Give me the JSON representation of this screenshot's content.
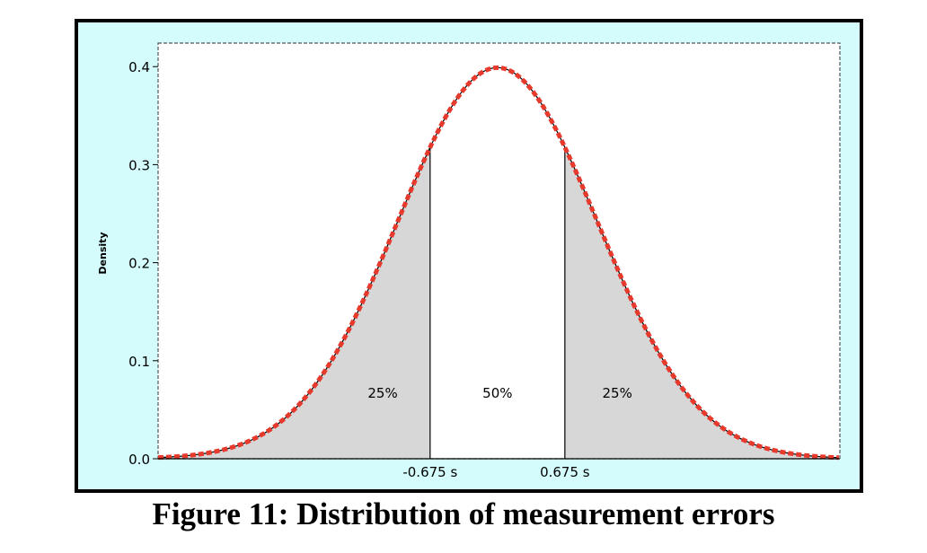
{
  "caption": "Figure 11: Distribution of measurement errors",
  "chart_data": {
    "type": "area",
    "title": "",
    "xlabel": "",
    "ylabel": "Density",
    "xlim": [
      -3.4,
      3.43
    ],
    "ylim": [
      0,
      0.424
    ],
    "yticks": [
      "0.0",
      "0.1",
      "0.2",
      "0.3",
      "0.4"
    ],
    "ytick_values": [
      0,
      0.1,
      0.2,
      0.3,
      0.4
    ],
    "xticks": [
      "-0.675 s",
      "0.675 s"
    ],
    "xtick_values": [
      -0.675,
      0.675
    ],
    "curve": "standard normal density, mean 0, sd 1",
    "shaded_regions": [
      {
        "from": -3.4,
        "to": -0.675,
        "label": "25%"
      },
      {
        "from": 0.675,
        "to": 3.43,
        "label": "25%"
      }
    ],
    "unshaded_label": "50%",
    "colors": {
      "curve": "#e8392d",
      "shade": "#d7d7d7",
      "background": "#d4fcfc",
      "plot": "#ffffff"
    },
    "grid": false
  }
}
